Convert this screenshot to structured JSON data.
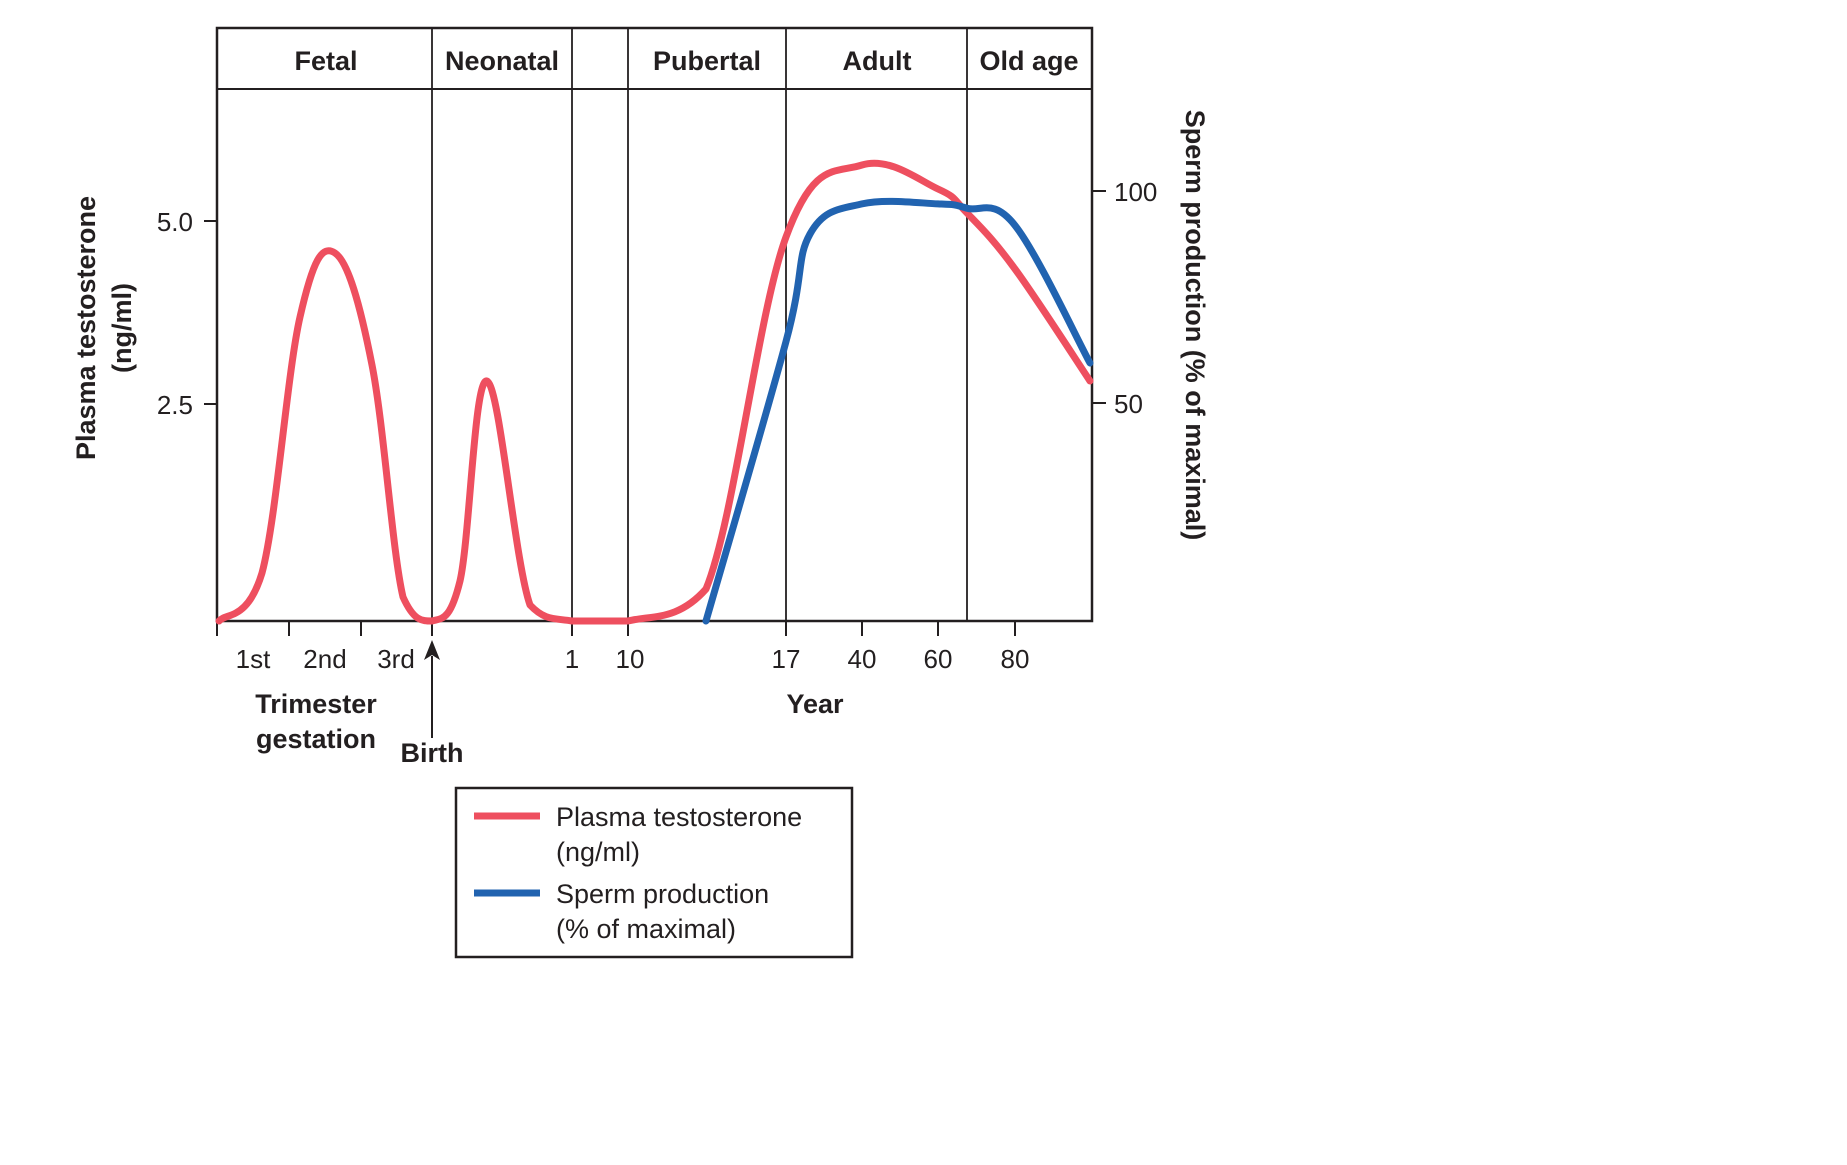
{
  "chart_data": {
    "type": "line",
    "phases": [
      "Fetal",
      "Neonatal",
      "",
      "Pubertal",
      "Adult",
      "Old age"
    ],
    "y_left": {
      "label_line1": "Plasma testosterone",
      "label_line2": "(ng/ml)",
      "ticks": [
        "5.0",
        "2.5"
      ],
      "tick_values": [
        5.0,
        2.5
      ],
      "range": [
        0,
        5.5
      ]
    },
    "y_right": {
      "label": "Sperm production (% of maximal)",
      "ticks": [
        "100",
        "50"
      ],
      "tick_values": [
        100,
        50
      ],
      "range": [
        0,
        100
      ]
    },
    "x_ticks": {
      "trimesters": [
        "1st",
        "2nd",
        "3rd"
      ],
      "years": [
        "1",
        "10",
        "17",
        "40",
        "60",
        "80"
      ]
    },
    "x_labels": {
      "trimester_line1": "Trimester",
      "trimester_line2": "gestation",
      "birth": "Birth",
      "year": "Year"
    },
    "series": [
      {
        "name": "Plasma testosterone (ng/ml)",
        "legend_line1": "Plasma testosterone",
        "legend_line2": "(ng/ml)",
        "color": "#ee4f5f",
        "axis": "left",
        "points": [
          [
            "start",
            0.0
          ],
          [
            "1st",
            0.6
          ],
          [
            "1st-2nd",
            3.8
          ],
          [
            "2nd+",
            4.6
          ],
          [
            "3rd-",
            3.2
          ],
          [
            "3rd",
            0.3
          ],
          [
            "birth",
            0.0
          ],
          [
            "neonatal-early",
            0.5
          ],
          [
            "neonatal-peak",
            3.0
          ],
          [
            "neonatal-late",
            0.2
          ],
          [
            "1",
            0.0
          ],
          [
            "10",
            0.0
          ],
          [
            "pubertal-mid",
            0.4
          ],
          [
            "17",
            4.8
          ],
          [
            "40",
            5.7
          ],
          [
            "60",
            5.4
          ],
          [
            "old-age-start",
            5.1
          ],
          [
            "80",
            4.4
          ],
          [
            "end",
            3.0
          ]
        ]
      },
      {
        "name": "Sperm production (% of maximal)",
        "legend_line1": "Sperm production",
        "legend_line2": "(% of maximal)",
        "color": "#2163b0",
        "axis": "right",
        "points": [
          [
            "pubertal-mid",
            0
          ],
          [
            "17",
            65
          ],
          [
            "adult-early",
            90
          ],
          [
            "40",
            97
          ],
          [
            "60",
            97
          ],
          [
            "old-age-start",
            96
          ],
          [
            "80",
            92
          ],
          [
            "end",
            60
          ]
        ]
      }
    ],
    "legend_position": "bottom-center"
  }
}
